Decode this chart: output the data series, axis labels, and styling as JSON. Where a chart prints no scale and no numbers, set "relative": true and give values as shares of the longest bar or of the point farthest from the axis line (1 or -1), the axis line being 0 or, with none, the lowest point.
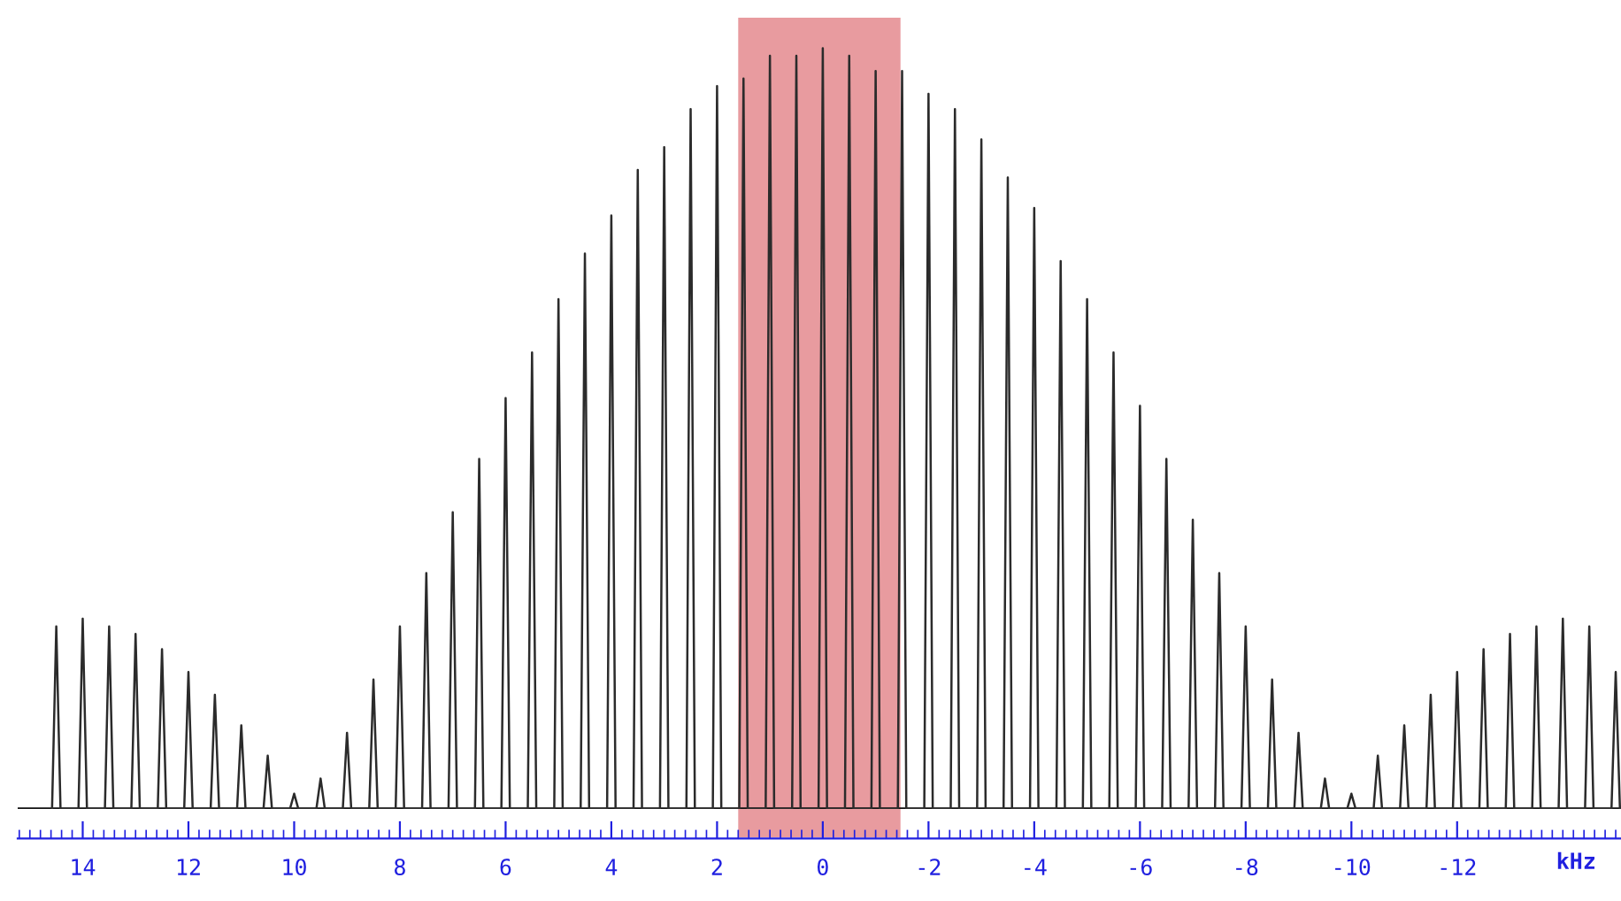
{
  "chart_data": {
    "type": "line",
    "relative": true,
    "xlabel": "kHz",
    "series": [
      {
        "color": "#2b2b2b",
        "x": [
          14.58,
          14.5,
          14.42,
          14.08,
          14.0,
          13.92,
          13.58,
          13.5,
          13.42,
          13.08,
          13.0,
          12.92,
          12.58,
          12.5,
          12.42,
          12.08,
          12.0,
          11.92,
          11.58,
          11.5,
          11.42,
          11.08,
          11.0,
          10.92,
          10.58,
          10.5,
          10.42,
          10.08,
          10.0,
          9.92,
          9.58,
          9.5,
          9.42,
          9.08,
          9.0,
          8.92,
          8.58,
          8.5,
          8.42,
          8.08,
          8.0,
          7.92,
          7.58,
          7.5,
          7.42,
          7.08,
          7.0,
          6.92,
          6.58,
          6.5,
          6.42,
          6.08,
          6.0,
          5.92,
          5.58,
          5.5,
          5.42,
          5.08,
          5.0,
          4.92,
          4.58,
          4.5,
          4.42,
          4.08,
          4.0,
          3.92,
          3.58,
          3.5,
          3.42,
          3.08,
          3.0,
          2.92,
          2.58,
          2.5,
          2.42,
          2.08,
          2.0,
          1.92,
          1.58,
          1.5,
          1.42,
          1.08,
          1.0,
          0.92,
          0.58,
          0.5,
          0.42,
          0.08,
          0,
          -0.08,
          -0.42,
          -0.5,
          -0.58,
          -0.92,
          -1,
          -1.08,
          -1.42,
          -1.5,
          -1.58,
          -1.92,
          -2,
          -2.08,
          -2.42,
          -2.5,
          -2.58,
          -2.92,
          -3,
          -3.08,
          -3.42,
          -3.5,
          -3.58,
          -3.92,
          -4,
          -4.08,
          -4.42,
          -4.5,
          -4.58,
          -4.92,
          -5,
          -5.08,
          -5.42,
          -5.5,
          -5.58,
          -5.92,
          -6,
          -6.08,
          -6.42,
          -6.5,
          -6.58,
          -6.92,
          -7,
          -7.08,
          -7.42,
          -7.5,
          -7.58,
          -7.92,
          -8,
          -8.08,
          -8.42,
          -8.5,
          -8.58,
          -8.92,
          -9,
          -9.08,
          -9.42,
          -9.5,
          -9.58,
          -9.92,
          -10,
          -10.08,
          -10.42,
          -10.5,
          -10.58,
          -10.92,
          -11,
          -11.08,
          -11.42,
          -11.5,
          -11.58,
          -11.92,
          -12,
          -12.08,
          -12.42,
          -12.5,
          -12.58,
          -12.92,
          -13,
          -13.08,
          -13.42,
          -13.5,
          -13.58,
          -13.92,
          -14,
          -14.08,
          -14.42,
          -14.5,
          -14.58,
          -14.92,
          -15,
          -15.08
        ],
        "values": [
          0,
          0.24,
          0,
          0,
          0.25,
          0,
          0,
          0.24,
          0,
          0,
          0.23,
          0,
          0,
          0.21,
          0,
          0,
          0.18,
          0,
          0,
          0.15,
          0,
          0,
          0.11,
          0,
          0,
          0.07,
          0,
          0,
          0.02,
          0,
          0,
          0.04,
          0,
          0,
          0.1,
          0,
          0,
          0.17,
          0,
          0,
          0.24,
          0,
          0,
          0.31,
          0,
          0,
          0.39,
          0,
          0,
          0.46,
          0,
          0,
          0.54,
          0,
          0,
          0.6,
          0,
          0,
          0.67,
          0,
          0,
          0.73,
          0,
          0,
          0.78,
          0,
          0,
          0.84,
          0,
          0,
          0.87,
          0,
          0,
          0.92,
          0,
          0,
          0.95,
          0,
          0,
          0.96,
          0,
          0,
          0.99,
          0,
          0,
          0.99,
          0,
          0,
          1,
          0,
          0,
          0.99,
          0,
          0,
          0.97,
          0,
          0,
          0.97,
          0,
          0,
          0.94,
          0,
          0,
          0.92,
          0,
          0,
          0.88,
          0,
          0,
          0.83,
          0,
          0,
          0.79,
          0,
          0,
          0.72,
          0,
          0,
          0.67,
          0,
          0,
          0.6,
          0,
          0,
          0.53,
          0,
          0,
          0.46,
          0,
          0,
          0.38,
          0,
          0,
          0.31,
          0,
          0,
          0.24,
          0,
          0,
          0.17,
          0,
          0,
          0.1,
          0,
          0,
          0.04,
          0,
          0,
          0.02,
          0,
          0,
          0.07,
          0,
          0,
          0.11,
          0,
          0,
          0.15,
          0,
          0,
          0.18,
          0,
          0,
          0.21,
          0,
          0,
          0.23,
          0,
          0,
          0.24,
          0,
          0,
          0.25,
          0,
          0,
          0.24,
          0,
          0,
          0.18,
          0
        ]
      }
    ],
    "xlim": [
      15.23,
      -15.1
    ],
    "xticks": [
      14,
      12,
      10,
      8,
      6,
      4,
      2,
      0,
      -2,
      -4,
      -6,
      -8,
      -10,
      -12
    ],
    "bands": [
      {
        "axis": "x",
        "from": 1.6,
        "to": -1.47,
        "color": "#e07a7f"
      }
    ],
    "grid": false,
    "legend": false
  }
}
